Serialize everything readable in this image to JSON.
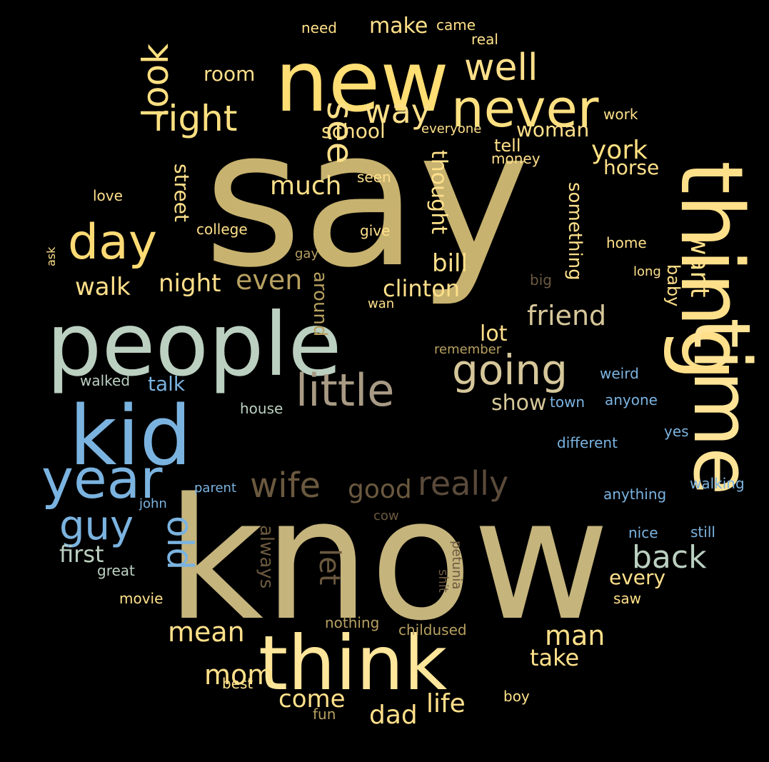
{
  "background_color": "#000000",
  "words": [
    {
      "text": "say",
      "color": "#C7B26F"
    },
    {
      "text": "know",
      "color": "#C5B47C"
    },
    {
      "text": "new",
      "color": "#FFDE74"
    },
    {
      "text": "people",
      "color": "#BBD0C0"
    },
    {
      "text": "kid",
      "color": "#7BB3E0"
    },
    {
      "text": "thing",
      "color": "#FFE08A"
    },
    {
      "text": "time",
      "color": "#FFE497"
    },
    {
      "text": "think",
      "color": "#FFE69A"
    },
    {
      "text": "never",
      "color": "#FFE081"
    },
    {
      "text": "year",
      "color": "#7BB3E0"
    },
    {
      "text": "day",
      "color": "#FFDB74"
    },
    {
      "text": "little",
      "color": "#A89A84"
    },
    {
      "text": "going",
      "color": "#D6C79A"
    },
    {
      "text": "right",
      "color": "#FFE081"
    },
    {
      "text": "look",
      "color": "#FFE081"
    },
    {
      "text": "see",
      "color": "#FFE08A"
    },
    {
      "text": "well",
      "color": "#FFE08A"
    },
    {
      "text": "way",
      "color": "#FFE08A"
    },
    {
      "text": "guy",
      "color": "#7BB3E0"
    },
    {
      "text": "old",
      "color": "#7BB3E0"
    },
    {
      "text": "wife",
      "color": "#6B593F"
    },
    {
      "text": "really",
      "color": "#5A4A3A"
    },
    {
      "text": "back",
      "color": "#BBD0C0"
    },
    {
      "text": "good",
      "color": "#6B593F"
    },
    {
      "text": "even",
      "color": "#B7A060"
    },
    {
      "text": "friend",
      "color": "#D6C79A"
    },
    {
      "text": "york",
      "color": "#FFE081"
    },
    {
      "text": "want",
      "color": "#FFE08A"
    },
    {
      "text": "much",
      "color": "#FFE08A"
    },
    {
      "text": "walk",
      "color": "#FFE08A"
    },
    {
      "text": "night",
      "color": "#FFE08A"
    },
    {
      "text": "bill",
      "color": "#FFE08A"
    },
    {
      "text": "clinton",
      "color": "#FFE08A"
    },
    {
      "text": "mean",
      "color": "#FFE08A"
    },
    {
      "text": "man",
      "color": "#FFE08A"
    },
    {
      "text": "mom",
      "color": "#FFE08A"
    },
    {
      "text": "dad",
      "color": "#FFE08A"
    },
    {
      "text": "life",
      "color": "#FFE08A"
    },
    {
      "text": "come",
      "color": "#FFE08A"
    },
    {
      "text": "take",
      "color": "#FFE08A"
    },
    {
      "text": "first",
      "color": "#BBD0C0"
    },
    {
      "text": "let",
      "color": "#6B593F"
    },
    {
      "text": "school",
      "color": "#FFE08A"
    },
    {
      "text": "woman",
      "color": "#FFE08A"
    },
    {
      "text": "make",
      "color": "#FFE08A"
    },
    {
      "text": "room",
      "color": "#FFE08A"
    },
    {
      "text": "show",
      "color": "#D6C79A"
    },
    {
      "text": "lot",
      "color": "#FFE08A"
    },
    {
      "text": "thought",
      "color": "#FFE08A"
    },
    {
      "text": "something",
      "color": "#FFE08A"
    },
    {
      "text": "street",
      "color": "#FFE08A"
    },
    {
      "text": "horse",
      "color": "#FFE08A"
    },
    {
      "text": "talk",
      "color": "#7BB3E0"
    },
    {
      "text": "every",
      "color": "#FFE08A"
    },
    {
      "text": "around",
      "color": "#B7A060"
    },
    {
      "text": "always",
      "color": "#6B593F"
    },
    {
      "text": "baby",
      "color": "#FFE08A"
    },
    {
      "text": "tell",
      "color": "#FFE08A"
    },
    {
      "text": "money",
      "color": "#FFE08A"
    },
    {
      "text": "seen",
      "color": "#FFE08A"
    },
    {
      "text": "give",
      "color": "#FFE08A"
    },
    {
      "text": "college",
      "color": "#FFE08A"
    },
    {
      "text": "love",
      "color": "#FFE08A"
    },
    {
      "text": "need",
      "color": "#FFE08A"
    },
    {
      "text": "came",
      "color": "#FFE08A"
    },
    {
      "text": "real",
      "color": "#FFE08A"
    },
    {
      "text": "work",
      "color": "#FFE08A"
    },
    {
      "text": "everyone",
      "color": "#FFE08A"
    },
    {
      "text": "home",
      "color": "#FFE08A"
    },
    {
      "text": "long",
      "color": "#FFE08A"
    },
    {
      "text": "big",
      "color": "#6B593F"
    },
    {
      "text": "gay",
      "color": "#B7A060"
    },
    {
      "text": "ask",
      "color": "#FFE08A"
    },
    {
      "text": "wan",
      "color": "#FFE08A"
    },
    {
      "text": "remember",
      "color": "#B7A060"
    },
    {
      "text": "walked",
      "color": "#BBD0C0"
    },
    {
      "text": "house",
      "color": "#BBD0C0"
    },
    {
      "text": "town",
      "color": "#7BB3E0"
    },
    {
      "text": "anyone",
      "color": "#7BB3E0"
    },
    {
      "text": "weird",
      "color": "#7BB3E0"
    },
    {
      "text": "yes",
      "color": "#7BB3E0"
    },
    {
      "text": "different",
      "color": "#7BB3E0"
    },
    {
      "text": "walking",
      "color": "#7BB3E0"
    },
    {
      "text": "anything",
      "color": "#7BB3E0"
    },
    {
      "text": "parent",
      "color": "#7BB3E0"
    },
    {
      "text": "john",
      "color": "#7BB3E0"
    },
    {
      "text": "nice",
      "color": "#7BB3E0"
    },
    {
      "text": "still",
      "color": "#7BB3E0"
    },
    {
      "text": "cow",
      "color": "#6B593F"
    },
    {
      "text": "great",
      "color": "#BBD0C0"
    },
    {
      "text": "movie",
      "color": "#FFE08A"
    },
    {
      "text": "shit",
      "color": "#6B593F"
    },
    {
      "text": "petunia",
      "color": "#6B593F"
    },
    {
      "text": "saw",
      "color": "#FFE08A"
    },
    {
      "text": "nothing",
      "color": "#B7A060"
    },
    {
      "text": "childused",
      "color": "#B7A060"
    },
    {
      "text": "best",
      "color": "#FFE08A"
    },
    {
      "text": "boy",
      "color": "#FFE08A"
    },
    {
      "text": "fun",
      "color": "#B7A060"
    }
  ]
}
